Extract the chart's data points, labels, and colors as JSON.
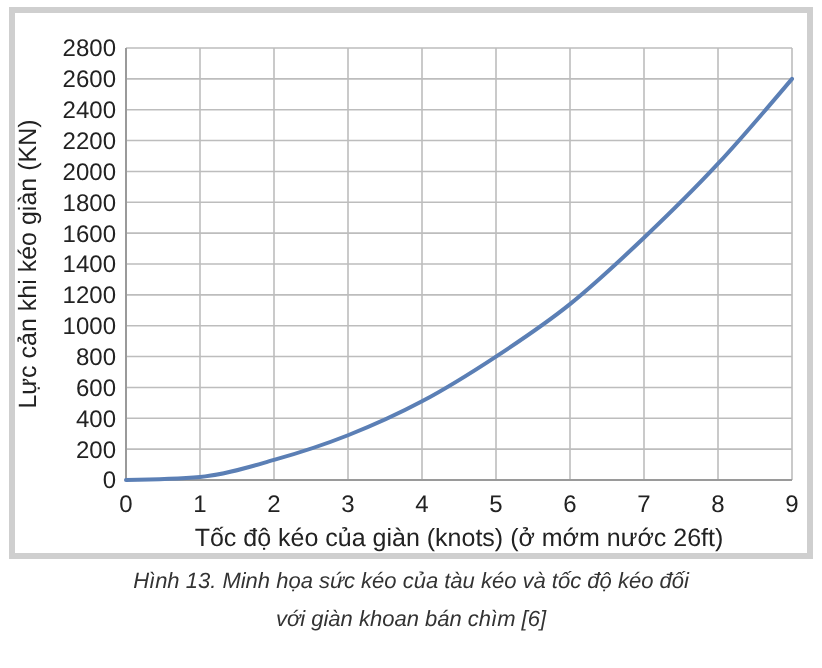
{
  "chart_data": {
    "type": "line",
    "xlabel": "Tốc độ kéo của giàn (knots) (ở mớm nước 26ft)",
    "ylabel": "Lực cản khi kéo giàn (KN)",
    "x": [
      0,
      1,
      2,
      3,
      4,
      5,
      6,
      7,
      8,
      9
    ],
    "series": [
      {
        "color": "#5b7fb5",
        "values": [
          0,
          20,
          130,
          290,
          510,
          800,
          1140,
          1570,
          2050,
          2600
        ]
      }
    ],
    "xlim": [
      0,
      9
    ],
    "xticks": [
      0,
      1,
      2,
      3,
      4,
      5,
      6,
      7,
      8,
      9
    ],
    "ylim": [
      0,
      2800
    ],
    "yticks": [
      0,
      200,
      400,
      600,
      800,
      1000,
      1200,
      1400,
      1600,
      1800,
      2000,
      2200,
      2400,
      2600,
      2800
    ],
    "grid": true,
    "marker": "none",
    "line_style": "solid",
    "annotations": [
      "Hình 13. Minh họa sức kéo của tàu kéo và tốc độ kéo đối với giàn khoan bán chìm [6]"
    ]
  }
}
